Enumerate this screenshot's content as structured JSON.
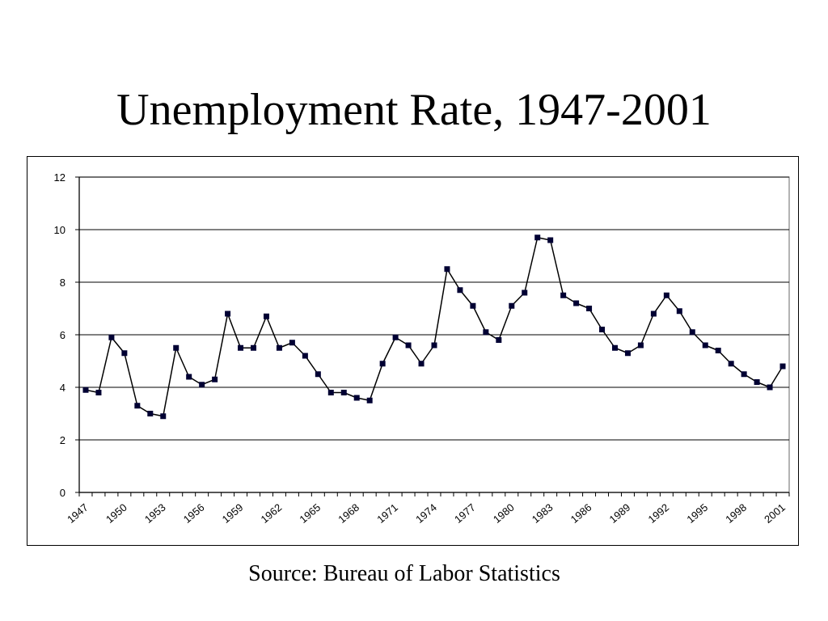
{
  "slide": {
    "title": "Unemployment Rate, 1947-2001",
    "source": "Source: Bureau of Labor Statistics"
  },
  "chart_data": {
    "type": "line",
    "title": "",
    "xlabel": "",
    "ylabel": "",
    "ylim": [
      0,
      12
    ],
    "yticks": [
      0,
      2,
      4,
      6,
      8,
      10,
      12
    ],
    "xticks": [
      "1947",
      "1950",
      "1953",
      "1956",
      "1959",
      "1962",
      "1965",
      "1968",
      "1971",
      "1974",
      "1977",
      "1980",
      "1983",
      "1986",
      "1989",
      "1992",
      "1995",
      "1998",
      "2001"
    ],
    "grid": "horizontal",
    "legend": "none",
    "marker": "square",
    "colors": {
      "line": "#000000",
      "marker": "#000033",
      "grid": "#000000",
      "plot_border": "#808080"
    },
    "x": [
      1947,
      1948,
      1949,
      1950,
      1951,
      1952,
      1953,
      1954,
      1955,
      1956,
      1957,
      1958,
      1959,
      1960,
      1961,
      1962,
      1963,
      1964,
      1965,
      1966,
      1967,
      1968,
      1969,
      1970,
      1971,
      1972,
      1973,
      1974,
      1975,
      1976,
      1977,
      1978,
      1979,
      1980,
      1981,
      1982,
      1983,
      1984,
      1985,
      1986,
      1987,
      1988,
      1989,
      1990,
      1991,
      1992,
      1993,
      1994,
      1995,
      1996,
      1997,
      1998,
      1999,
      2000,
      2001
    ],
    "series": [
      {
        "values": [
          3.9,
          3.8,
          5.9,
          5.3,
          3.3,
          3.0,
          2.9,
          5.5,
          4.4,
          4.1,
          4.3,
          6.8,
          5.5,
          5.5,
          6.7,
          5.5,
          5.7,
          5.2,
          4.5,
          3.8,
          3.8,
          3.6,
          3.5,
          4.9,
          5.9,
          5.6,
          4.9,
          5.6,
          8.5,
          7.7,
          7.1,
          6.1,
          5.8,
          7.1,
          7.6,
          9.7,
          9.6,
          7.5,
          7.2,
          7.0,
          6.2,
          5.5,
          5.3,
          5.6,
          6.8,
          7.5,
          6.9,
          6.1,
          5.6,
          5.4,
          4.9,
          4.5,
          4.2,
          4.0,
          4.8
        ]
      }
    ]
  }
}
